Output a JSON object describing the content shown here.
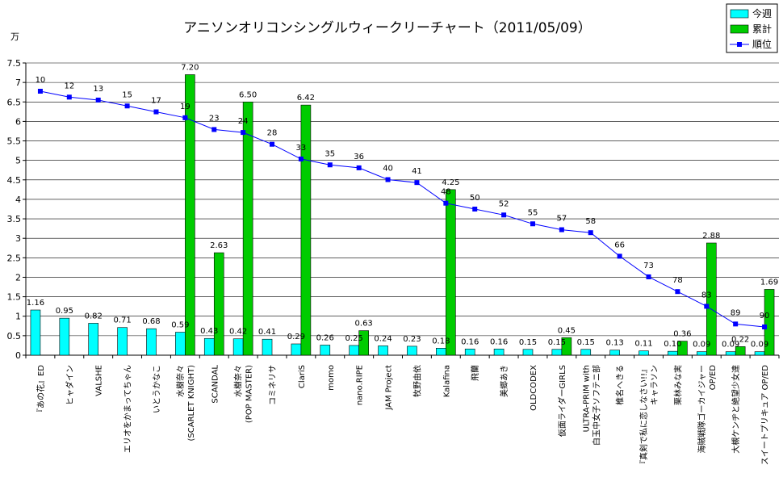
{
  "chart_data": {
    "type": "bar",
    "title": "アニソンオリコンシングルウィークリーチャート（2011/05/09）",
    "ylabel": "万",
    "ylim": [
      0,
      7.5
    ],
    "yticks": [
      "0",
      "0.5",
      "1",
      "1.5",
      "2",
      "2.5",
      "3",
      "3.5",
      "4",
      "4.5",
      "5",
      "5.5",
      "6",
      "6.5",
      "7",
      "7.5"
    ],
    "legend_position": "top-right",
    "categories": [
      [
        "『あの花』ED"
      ],
      [
        "ヒャダイン"
      ],
      [
        "VALSHE"
      ],
      [
        "エリオをかまってちゃん"
      ],
      [
        "いとうかなこ"
      ],
      [
        "水樹奈々",
        "(SCARLET KNIGHT)"
      ],
      [
        "SCANDAL"
      ],
      [
        "水樹奈々",
        "(POP MASTER)"
      ],
      [
        "コミネリサ"
      ],
      [
        "ClariS"
      ],
      [
        "momo"
      ],
      [
        "nano.RIPE"
      ],
      [
        "JAM Project"
      ],
      [
        "牧野由依"
      ],
      [
        "Kalafina"
      ],
      [
        "飛蘭"
      ],
      [
        "美郷あき"
      ],
      [
        "OLDCODEX"
      ],
      [
        "仮面ライダーGIRLS"
      ],
      [
        "ULTRA-PRIM with",
        "白玉中女子ソフテニ部"
      ],
      [
        "椎名へきる"
      ],
      [
        "『真剣で私に恋しなさい!!』",
        "キャラソン"
      ],
      [
        "栗林みな実"
      ],
      [
        "海賊戦隊ゴーカイジャー",
        "OP/ED"
      ],
      [
        "大槻ケンヂと絶望少女達"
      ],
      [
        "スイートプリキュア OP/ED"
      ]
    ],
    "series": [
      {
        "name": "今週",
        "kind": "bar",
        "color": "#00FFFF",
        "values": [
          1.16,
          0.95,
          0.82,
          0.71,
          0.68,
          0.59,
          0.43,
          0.42,
          0.41,
          0.29,
          0.26,
          0.25,
          0.24,
          0.23,
          0.18,
          0.16,
          0.16,
          0.15,
          0.15,
          0.15,
          0.13,
          0.11,
          0.1,
          0.09,
          0.09,
          0.09
        ],
        "labels": [
          "1.16",
          "0.95",
          "0.82",
          "0.71",
          "0.68",
          "0.59",
          "0.43",
          "0.42",
          "0.41",
          "0.29",
          "0.26",
          "0.25",
          "0.24",
          "0.23",
          "0.18",
          "0.16",
          "0.16",
          "0.15",
          "0.15",
          "0.15",
          "0.13",
          "0.11",
          "0.10",
          "0.09",
          "0.09",
          "0.09"
        ]
      },
      {
        "name": "累計",
        "kind": "bar",
        "color": "#00CC00",
        "values": [
          null,
          null,
          null,
          null,
          null,
          7.2,
          2.63,
          6.5,
          null,
          6.42,
          null,
          0.63,
          null,
          null,
          4.25,
          null,
          null,
          null,
          0.45,
          null,
          null,
          null,
          0.36,
          2.88,
          0.22,
          1.69
        ],
        "labels": [
          "",
          "",
          "",
          "",
          "",
          "7.20",
          "2.63",
          "6.50",
          "",
          "6.42",
          "",
          "0.63",
          "",
          "",
          "4.25",
          "",
          "",
          "",
          "0.45",
          "",
          "",
          "",
          "0.36",
          "2.88",
          "0.22",
          "1.69"
        ]
      },
      {
        "name": "順位",
        "kind": "line",
        "color": "#0000FF",
        "values": [
          10,
          12,
          13,
          15,
          17,
          19,
          23,
          24,
          28,
          33,
          35,
          36,
          40,
          41,
          48,
          50,
          52,
          55,
          57,
          58,
          66,
          73,
          78,
          83,
          89,
          90
        ],
        "labels": [
          "10",
          "12",
          "13",
          "15",
          "17",
          "19",
          "23",
          "24",
          "28",
          "33",
          "35",
          "36",
          "40",
          "41",
          "48",
          "50",
          "52",
          "55",
          "57",
          "58",
          "66",
          "73",
          "78",
          "83",
          "89",
          "90"
        ]
      }
    ]
  }
}
